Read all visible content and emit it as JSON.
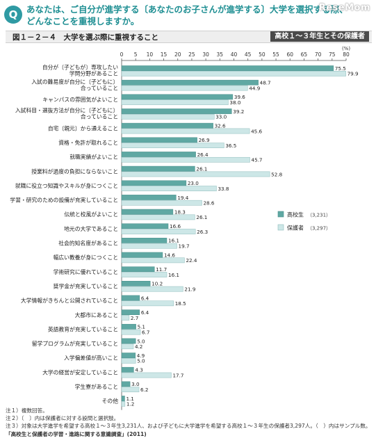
{
  "header": {
    "q_badge": "Q",
    "question": "あなたは、ご自分が進学する〔あなたのお子さんが進学する〕大学を選択する際、どんなことを重視しますか。",
    "watermark": "ReseMom"
  },
  "figure": {
    "title": "図１－２－４　大学を選ぶ際に重視すること",
    "tag": "高校１～３年生とその保護者"
  },
  "colors": {
    "student": "#5fa8a3",
    "parent": "#cde7e7",
    "axis": "#555555",
    "grid": "#e6e6e6"
  },
  "chart_data": {
    "type": "bar",
    "orientation": "horizontal",
    "unit": "(%)",
    "xlim": [
      0,
      80
    ],
    "ticks": [
      0,
      5,
      10,
      15,
      20,
      25,
      30,
      35,
      40,
      45,
      50,
      55,
      60,
      65,
      70,
      75,
      80
    ],
    "categories": [
      [
        "自分が〔子どもが〕専攻したい",
        "学問分野があること"
      ],
      [
        "入試の難易度が自分に〔子どもに〕",
        "合っていること"
      ],
      [
        "キャンパスの雰囲気がよいこと"
      ],
      [
        "入試科目・選抜方法が自分に〔子どもに〕",
        "合っていること"
      ],
      [
        "自宅〔親元〕から通えること"
      ],
      [
        "資格・免許が取れること"
      ],
      [
        "就職実績がよいこと"
      ],
      [
        "授業料が過度の負担にならないこと"
      ],
      [
        "就職に役立つ知識やスキルが身につくこと"
      ],
      [
        "学習・研究のための設備が充実していること"
      ],
      [
        "伝統と校風がよいこと"
      ],
      [
        "地元の大学であること"
      ],
      [
        "社会的知名度があること"
      ],
      [
        "幅広い教養が身につくこと"
      ],
      [
        "学術研究に優れていること"
      ],
      [
        "奨学金が充実していること"
      ],
      [
        "大学情報がきちんと公開されていること"
      ],
      [
        "大都市にあること"
      ],
      [
        "英語教育が充実していること"
      ],
      [
        "留学プログラムが充実していること"
      ],
      [
        "入学偏差値が高いこと"
      ],
      [
        "大学の経営が安定していること"
      ],
      [
        "学生寮があること"
      ],
      [
        "その他"
      ]
    ],
    "series": [
      {
        "name": "高校生",
        "n": "（3,231）",
        "values": [
          75.5,
          48.7,
          39.6,
          39.2,
          32.6,
          26.9,
          26.4,
          26.1,
          23.0,
          19.4,
          18.3,
          16.6,
          16.1,
          14.6,
          11.7,
          10.2,
          6.4,
          6.4,
          5.1,
          5.0,
          4.9,
          4.3,
          3.0,
          1.1
        ]
      },
      {
        "name": "保護者",
        "n": "（3,297）",
        "values": [
          79.9,
          44.9,
          38.0,
          33.0,
          45.6,
          36.5,
          45.7,
          52.8,
          33.8,
          28.6,
          26.1,
          26.3,
          19.7,
          22.4,
          16.1,
          21.9,
          18.5,
          2.7,
          6.7,
          4.2,
          5.0,
          17.7,
          6.2,
          1.2
        ]
      }
    ]
  },
  "notes": [
    "注１）複数回答。",
    "注２）〔　〕内は保護者に対する設問と選択肢。",
    "注３）対象は大学進学を希望する高校１～３年生3,231人、および子どもに大学進学を希望する高校１～３年生の保護者3,297人。（　）内はサンプル数。",
    "「高校生と保護者の学習・進路に関する意識調査」(2011)"
  ]
}
